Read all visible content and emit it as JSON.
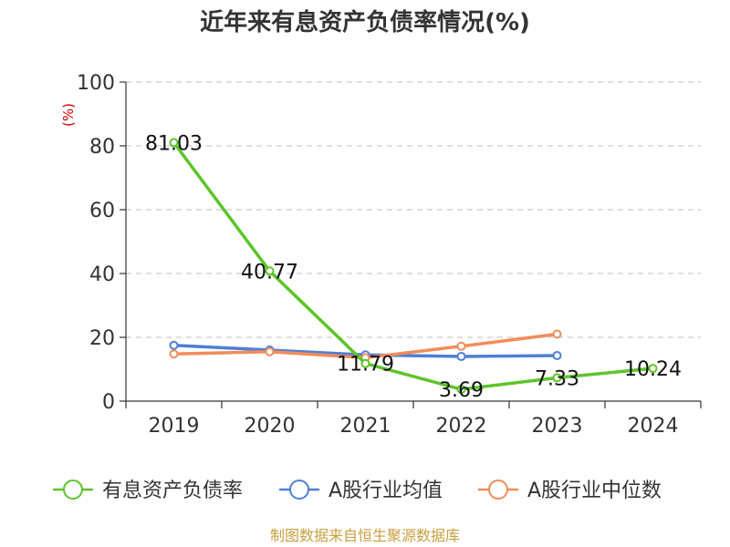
{
  "chart_data": {
    "type": "line",
    "title": "近年来有息资产负债率情况(%)",
    "unit_label": "(%)",
    "categories": [
      "2019",
      "2020",
      "2021",
      "2022",
      "2023",
      "2024"
    ],
    "ylim": [
      0,
      100
    ],
    "yticks": [
      "0",
      "20",
      "40",
      "60",
      "80",
      "100"
    ],
    "grid": true,
    "legend_position": "bottom",
    "series": [
      {
        "name": "有息资产负债率",
        "color": "#5cc52a",
        "values": [
          81.03,
          40.77,
          11.79,
          3.69,
          7.33,
          10.24
        ],
        "labels": [
          "81.03",
          "40.77",
          "11.79",
          "3.69",
          "7.33",
          "10.24"
        ]
      },
      {
        "name": "A股行业均值",
        "color": "#4f7fd6",
        "values": [
          17.5,
          16.0,
          14.5,
          14.0,
          14.3,
          null
        ]
      },
      {
        "name": "A股行业中位数",
        "color": "#f28c5a",
        "values": [
          14.8,
          15.5,
          13.6,
          17.2,
          21.0,
          null
        ]
      }
    ]
  },
  "source_text": "制图数据来自恒生聚源数据库",
  "colors": {
    "axis": "#333333",
    "grid": "#cccccc",
    "unit": "#cc0000",
    "source": "#c8a040"
  }
}
